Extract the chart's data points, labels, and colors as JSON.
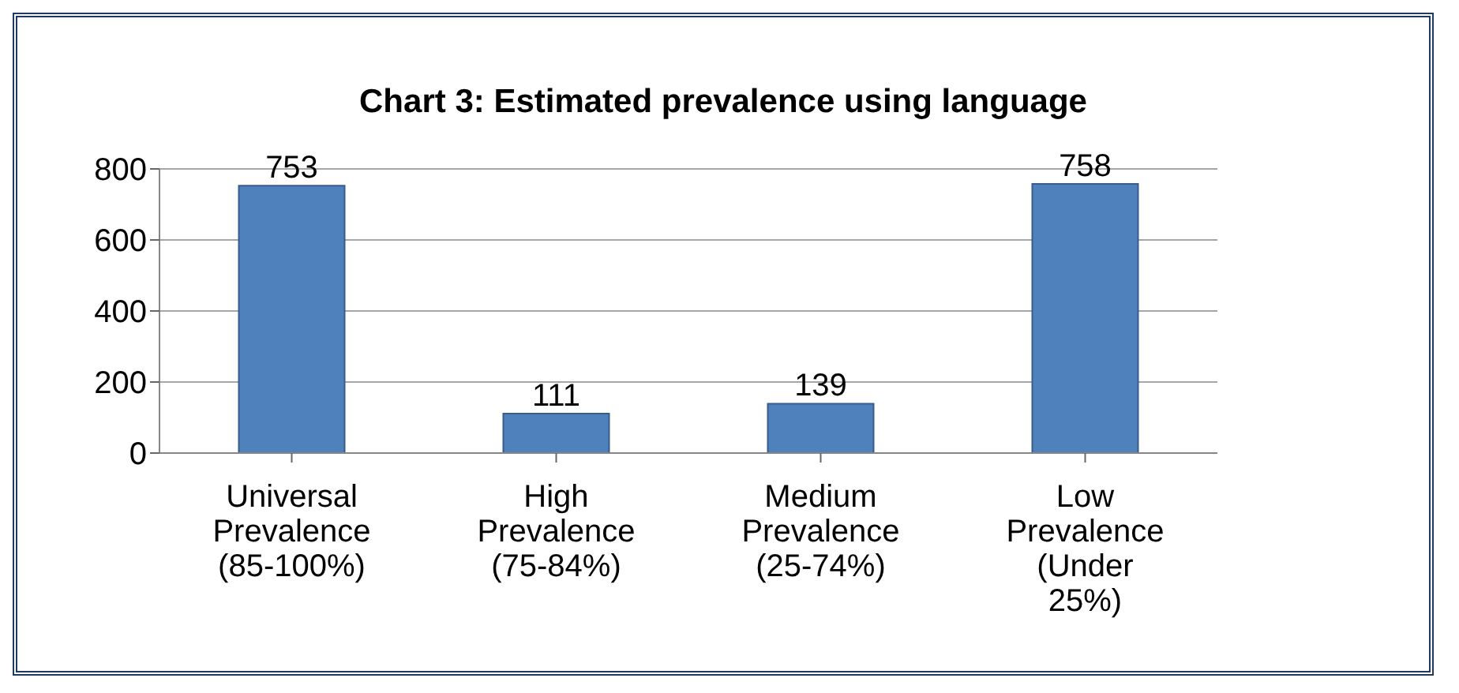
{
  "chart_data": {
    "type": "bar",
    "title": "Chart 3: Estimated prevalence using language",
    "categories": [
      "Universal Prevalence (85-100%)",
      "High Prevalence (75-84%)",
      "Medium Prevalence (25-74%)",
      "Low Prevalence (Under 25%)"
    ],
    "values": [
      753,
      111,
      139,
      758
    ],
    "color": "#4f81bd",
    "ylim": [
      0,
      800
    ],
    "yticks": [
      0,
      200,
      400,
      600,
      800
    ],
    "grid": "y",
    "data_labels": true
  }
}
